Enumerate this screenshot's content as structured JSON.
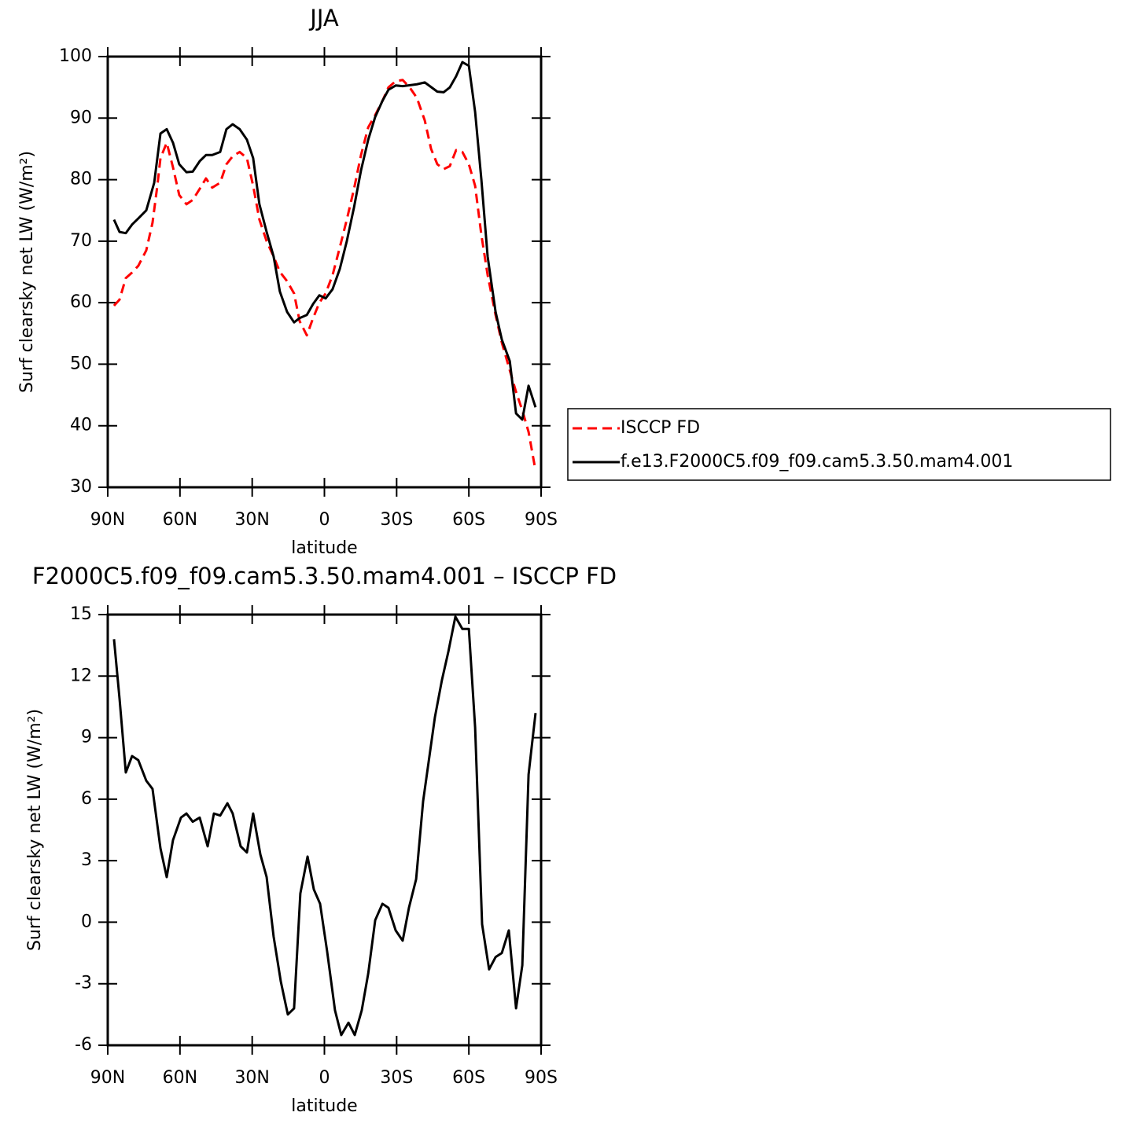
{
  "chart_data": [
    {
      "type": "line",
      "title": "JJA",
      "xlabel": "latitude",
      "ylabel": "Surf clearsky net LW (W/m²)",
      "xlim": [
        90,
        -90
      ],
      "xticks": [
        {
          "value": 90,
          "label": "90N"
        },
        {
          "value": 60,
          "label": "60N"
        },
        {
          "value": 30,
          "label": "30N"
        },
        0,
        {
          "value": -30,
          "label": "30S"
        },
        {
          "value": -60,
          "label": "60S"
        },
        {
          "value": -90,
          "label": "90S"
        }
      ],
      "ylim": [
        30,
        100
      ],
      "yticks": [
        30,
        40,
        50,
        60,
        70,
        80,
        90,
        100
      ],
      "legend": "right",
      "series": [
        {
          "name": "ISCCP FD",
          "color": "#ff0000",
          "dash": true,
          "x": [
            87.4,
            85.1,
            82.5,
            79.9,
            77.3,
            74.0,
            71.4,
            69.4,
            68.1,
            65.5,
            62.9,
            60.3,
            57.3,
            54.7,
            51.8,
            49.2,
            46.6,
            43.3,
            40.7,
            38.1,
            35.2,
            32.2,
            29.6,
            27.0,
            24.0,
            21.1,
            18.5,
            15.5,
            12.6,
            10.3,
            7.3,
            4.7,
            2.1,
            -0.5,
            -3.4,
            -6.4,
            -9.3,
            -12.3,
            -15.2,
            -18.2,
            -21.1,
            -24.1,
            -26.6,
            -29.6,
            -32.5,
            -35.4,
            -38.4,
            -41.7,
            -44.3,
            -46.9,
            -49.5,
            -52.1,
            -54.7,
            -57.3,
            -60.0,
            -62.6,
            -65.2,
            -67.8,
            -71.1,
            -73.7,
            -77.0,
            -79.6,
            -82.2,
            -84.8,
            -87.7
          ],
          "values": [
            59.5,
            60.5,
            64,
            64.9,
            66,
            68.5,
            73,
            79,
            83.5,
            86,
            82,
            77.5,
            76,
            76.7,
            78.5,
            80.2,
            78.7,
            79.5,
            82.5,
            83.8,
            84.5,
            83.5,
            79,
            73.5,
            70,
            67.5,
            65,
            63.5,
            61.5,
            57,
            54.7,
            57.5,
            60,
            61.5,
            64.5,
            69,
            73.5,
            78.5,
            84,
            88.5,
            90.5,
            92.8,
            95,
            96,
            96.2,
            95,
            93.3,
            89.6,
            85,
            82.5,
            81.7,
            82.2,
            84.8,
            84.5,
            82.5,
            79,
            71,
            64.5,
            58,
            53.5,
            49,
            45.5,
            42.5,
            39,
            32.7
          ]
        },
        {
          "name": "f.e13.F2000C5.f09_f09.cam5.3.50.mam4.001",
          "color": "#000000",
          "dash": false,
          "x": [
            87.4,
            85.1,
            82.5,
            79.9,
            77.3,
            74.0,
            70.7,
            68.1,
            65.5,
            62.9,
            60.3,
            57.3,
            54.7,
            51.8,
            49.2,
            46.6,
            43.3,
            40.7,
            38.1,
            35.2,
            32.2,
            29.6,
            27.0,
            24.0,
            21.1,
            18.5,
            15.5,
            12.6,
            10.3,
            7.3,
            4.7,
            2.1,
            -0.5,
            -3.4,
            -6.4,
            -9.3,
            -12.3,
            -15.2,
            -18.2,
            -21.1,
            -24.1,
            -26.6,
            -29.6,
            -32.5,
            -38.4,
            -41.7,
            -46.9,
            -49.5,
            -52.1,
            -54.7,
            -57.3,
            -60.0,
            -62.6,
            -65.2,
            -67.8,
            -71.1,
            -73.7,
            -77.0,
            -79.6,
            -82.2,
            -84.8,
            -87.7
          ],
          "values": [
            73.5,
            71.5,
            71.3,
            72.7,
            73.7,
            75,
            79.5,
            87.5,
            88.2,
            86,
            82.5,
            81.2,
            81.3,
            83,
            84,
            84,
            84.5,
            88.2,
            89,
            88.2,
            86.5,
            83.5,
            76,
            71.5,
            67.5,
            61.8,
            58.5,
            56.8,
            57.5,
            58,
            59.8,
            61.2,
            60.7,
            62.2,
            65.5,
            70,
            75.5,
            81.5,
            86.5,
            90.2,
            92.8,
            94.6,
            95.3,
            95.2,
            95.5,
            95.8,
            94.3,
            94.2,
            95,
            96.8,
            99.1,
            98.5,
            91,
            80,
            67.5,
            58.5,
            54,
            50.5,
            42,
            41,
            46.5,
            43
          ]
        }
      ]
    },
    {
      "type": "line",
      "title": "F2000C5.f09_f09.cam5.3.50.mam4.001 – ISCCP FD",
      "xlabel": "latitude",
      "ylabel": "Surf clearsky net LW (W/m²)",
      "xlim": [
        90,
        -90
      ],
      "xticks": [
        {
          "value": 90,
          "label": "90N"
        },
        {
          "value": 60,
          "label": "60N"
        },
        {
          "value": 30,
          "label": "30N"
        },
        0,
        {
          "value": -30,
          "label": "30S"
        },
        {
          "value": -60,
          "label": "60S"
        },
        {
          "value": -90,
          "label": "90S"
        }
      ],
      "ylim": [
        -6,
        15
      ],
      "yticks": [
        -6,
        -3,
        0,
        3,
        6,
        9,
        12,
        15
      ],
      "series": [
        {
          "color": "#000000",
          "dash": false,
          "x": [
            87.4,
            85.1,
            82.5,
            79.9,
            77.3,
            74.0,
            71.4,
            68.1,
            65.5,
            62.9,
            59.6,
            57.3,
            54.7,
            51.8,
            48.5,
            45.9,
            43.3,
            40.3,
            38.1,
            34.8,
            32.2,
            29.6,
            26.6,
            24.0,
            21.1,
            18.1,
            15.2,
            12.6,
            10.0,
            7.0,
            4.4,
            1.8,
            -1.1,
            -4.4,
            -7.0,
            -10.0,
            -12.6,
            -15.5,
            -18.2,
            -21.1,
            -24.1,
            -26.6,
            -29.6,
            -32.5,
            -35.1,
            -38.1,
            -41.0,
            -45.9,
            -48.8,
            -51.5,
            -54.4,
            -57.3,
            -60.0,
            -62.6,
            -65.5,
            -68.4,
            -71.1,
            -73.7,
            -76.6,
            -79.6,
            -82.2,
            -84.8,
            -87.7
          ],
          "values": [
            13.8,
            10.9,
            7.3,
            8.1,
            7.9,
            6.9,
            6.5,
            3.6,
            2.2,
            4.0,
            5.1,
            5.3,
            4.9,
            5.1,
            3.7,
            5.3,
            5.2,
            5.8,
            5.3,
            3.7,
            3.4,
            5.3,
            3.3,
            2.2,
            -0.7,
            -2.9,
            -4.5,
            -4.2,
            1.4,
            3.2,
            1.6,
            0.9,
            -1.4,
            -4.3,
            -5.5,
            -4.9,
            -5.5,
            -4.3,
            -2.5,
            0.1,
            0.9,
            0.7,
            -0.4,
            -0.9,
            0.7,
            2.1,
            5.9,
            10.0,
            11.8,
            13.2,
            14.9,
            14.3,
            14.3,
            9.5,
            -0.1,
            -2.3,
            -1.7,
            -1.5,
            -0.4,
            -4.2,
            -2.1,
            7.2,
            10.2
          ]
        }
      ]
    }
  ]
}
